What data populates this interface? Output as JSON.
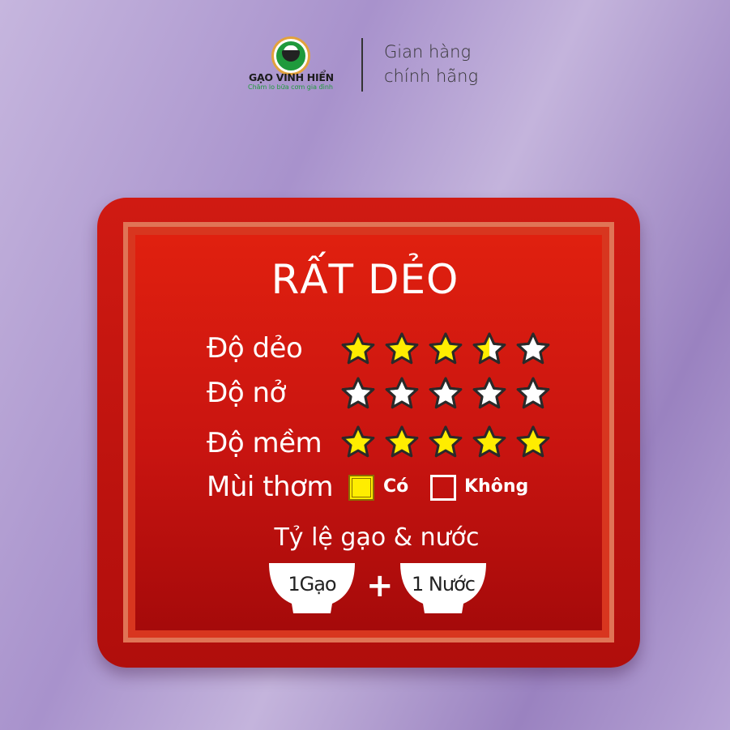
{
  "header": {
    "brand": "GẠO VINH HIỂN",
    "tagline": "Chăm lo bữa cơm gia đình",
    "slogan_line1": "Gian hàng",
    "slogan_line2": "chính hãng"
  },
  "card": {
    "title": "RẤT DẺO",
    "ratings": [
      {
        "label": "Độ dẻo",
        "value": 3.5,
        "max": 5
      },
      {
        "label": "Độ nở",
        "value": 0,
        "max": 5
      },
      {
        "label": "Độ mềm",
        "value": 5,
        "max": 5
      }
    ],
    "aroma": {
      "label": "Mùi thơm",
      "options": [
        {
          "label": "Có",
          "checked": true
        },
        {
          "label": "Không",
          "checked": false
        }
      ]
    },
    "ratio": {
      "title": "Tỷ lệ gạo & nước",
      "rice": "1Gạo",
      "plus": "+",
      "water": "1 Nước"
    }
  },
  "colors": {
    "star_fill": "#ffed00",
    "card_red": "#d01a12",
    "background": "#a892cc",
    "logo_green": "#1f9a3c"
  }
}
